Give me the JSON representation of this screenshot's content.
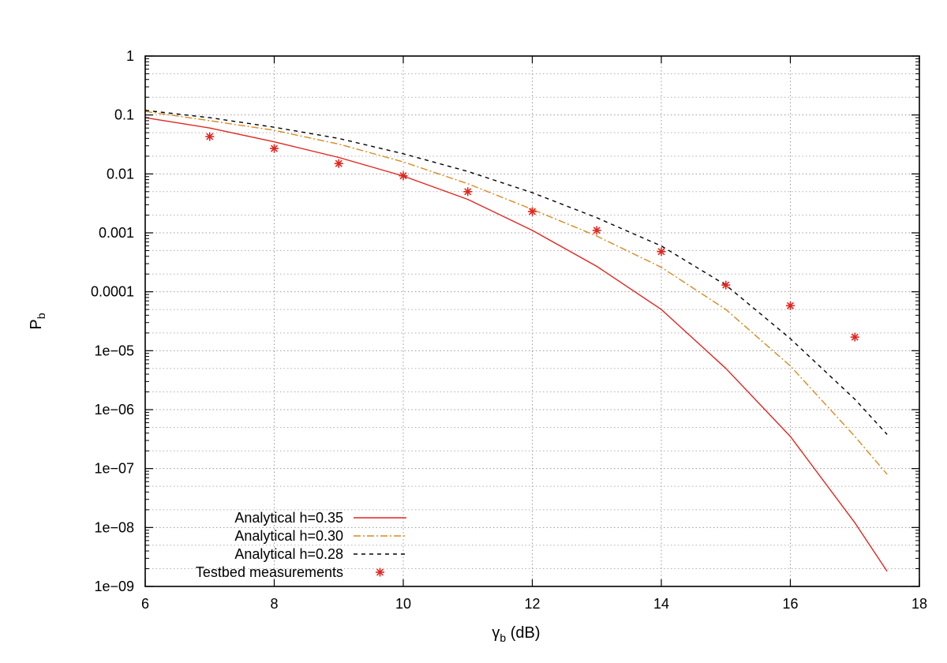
{
  "chart_data": {
    "type": "line",
    "title": "",
    "xlabel": "γ",
    "xlabel_sub": "b",
    "xlabel_suffix": " (dB)",
    "ylabel": "P",
    "ylabel_sub": "b",
    "xlim": [
      6,
      18
    ],
    "ylim": [
      1e-09,
      1
    ],
    "yscale": "log",
    "grid": true,
    "legend_position": "bottom-left",
    "x_ticks": [
      6,
      8,
      10,
      12,
      14,
      16,
      18
    ],
    "x_tick_labels": [
      "6",
      "8",
      "10",
      "12",
      "14",
      "16",
      "18"
    ],
    "y_ticks": [
      1,
      0.1,
      0.01,
      0.001,
      0.0001,
      1e-05,
      1e-06,
      1e-07,
      1e-08,
      1e-09
    ],
    "y_tick_labels": [
      "1",
      "0.1",
      "0.01",
      "0.001",
      "0.0001",
      "1e−05",
      "1e−06",
      "1e−07",
      "1e−08",
      "1e−09"
    ],
    "series": [
      {
        "name": "Analytical h=0.35",
        "style": "solid",
        "color": "#e0261f",
        "x": [
          6,
          7,
          8,
          9,
          10,
          11,
          12,
          13,
          14,
          15,
          16,
          17,
          17.5
        ],
        "y": [
          0.09,
          0.06,
          0.035,
          0.019,
          0.0092,
          0.0037,
          0.0011,
          0.00027,
          5e-05,
          5e-06,
          3.5e-07,
          1.2e-08,
          1.8e-09
        ]
      },
      {
        "name": "Analytical  h=0.30",
        "style": "dashdot",
        "color": "#d98a1e",
        "x": [
          6,
          7,
          8,
          9,
          10,
          11,
          12,
          13,
          14,
          15,
          16,
          17,
          17.5
        ],
        "y": [
          0.115,
          0.08,
          0.055,
          0.032,
          0.016,
          0.0068,
          0.0025,
          0.00088,
          0.00026,
          5e-05,
          5.5e-06,
          3.5e-07,
          8e-08
        ]
      },
      {
        "name": "Analytical h=0.28",
        "style": "dashed",
        "color": "#000000",
        "x": [
          6,
          7,
          8,
          9,
          10,
          11,
          12,
          13,
          14,
          15,
          16,
          17,
          17.5
        ],
        "y": [
          0.12,
          0.09,
          0.062,
          0.04,
          0.022,
          0.011,
          0.0048,
          0.0018,
          0.0006,
          0.00013,
          1.6e-05,
          1.5e-06,
          3.8e-07
        ]
      },
      {
        "name": "Testbed measurements",
        "style": "marker",
        "color": "#e0261f",
        "x": [
          7,
          8,
          9,
          10,
          11,
          12,
          13,
          14,
          15,
          16,
          17
        ],
        "y": [
          0.043,
          0.027,
          0.015,
          0.0093,
          0.005,
          0.0023,
          0.0011,
          0.00048,
          0.00013,
          5.8e-05,
          1.7e-05
        ]
      }
    ]
  }
}
